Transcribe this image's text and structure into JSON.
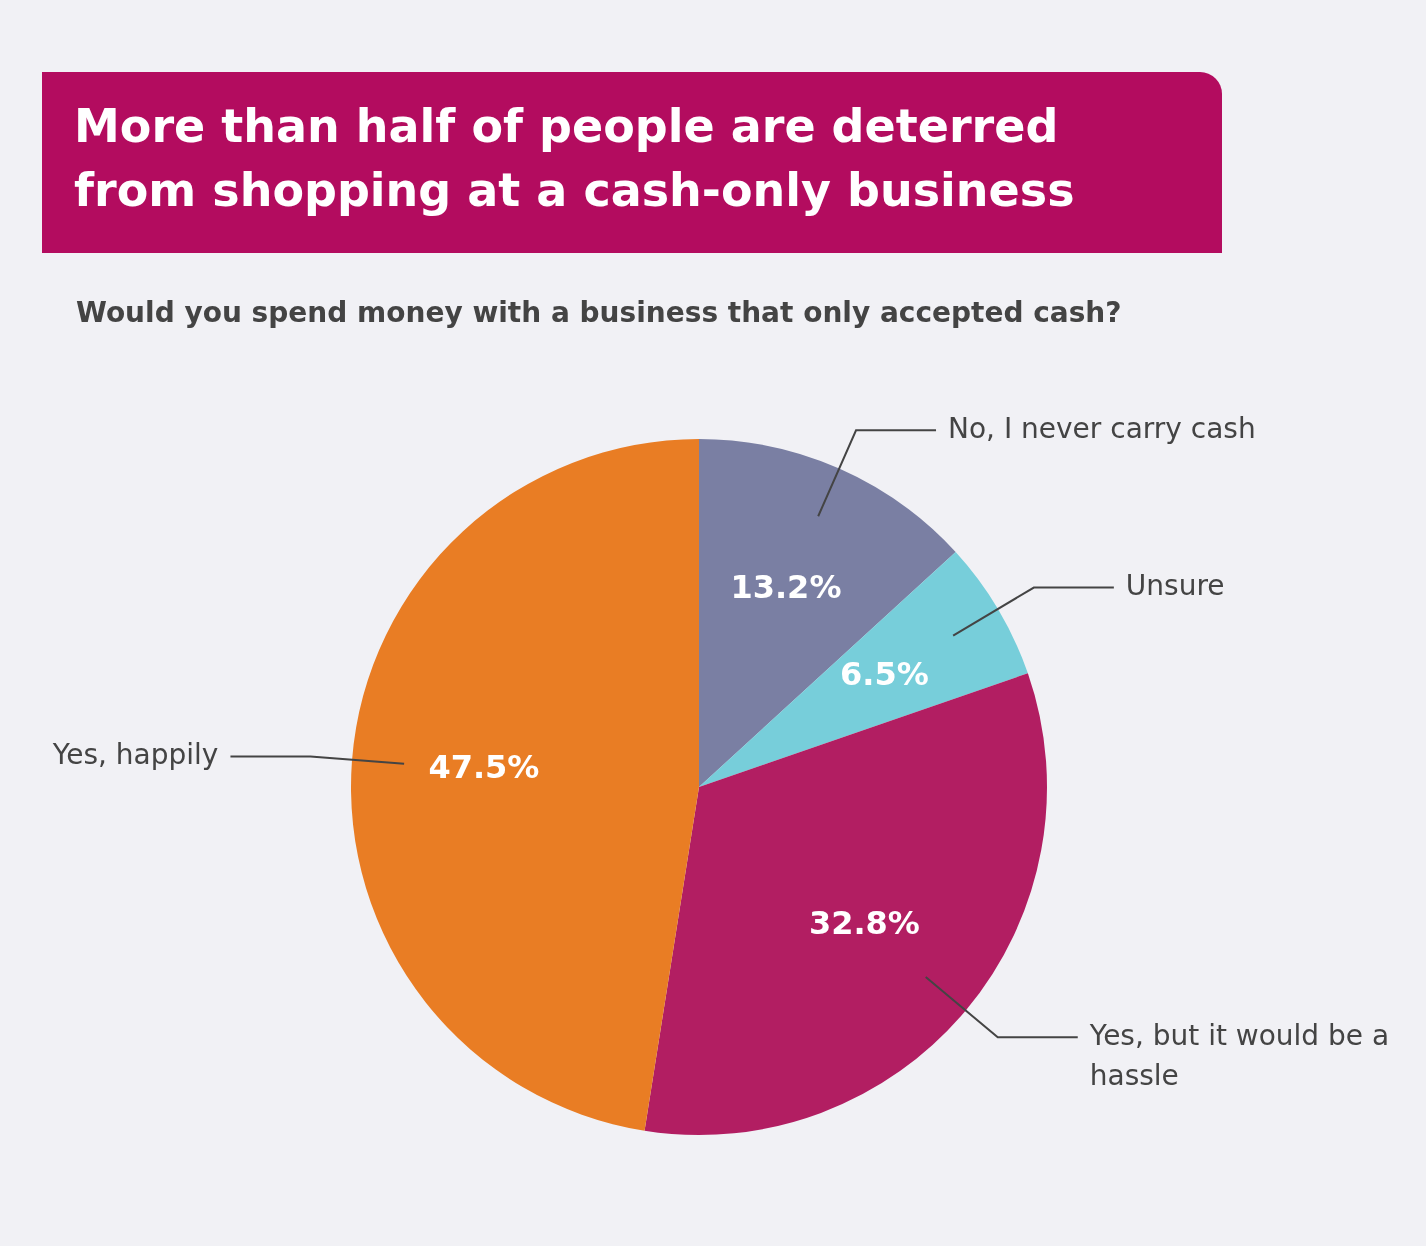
{
  "chart_data": {
    "type": "pie",
    "title": "More than half of people are deterred from shopping at a cash-only business",
    "subtitle": "Would you spend money with a business that only accepted cash?",
    "categories": [
      "No, I never carry cash",
      "Unsure",
      "Yes, but it would be a hassle",
      "Yes, happily"
    ],
    "values": [
      13.2,
      6.5,
      32.8,
      47.5
    ],
    "colors": [
      "#7a7fa3",
      "#77ceda",
      "#b21e62",
      "#e97d24"
    ],
    "value_labels": [
      "13.2%",
      "6.5%",
      "32.8%",
      "47.5%"
    ],
    "legend": false
  }
}
